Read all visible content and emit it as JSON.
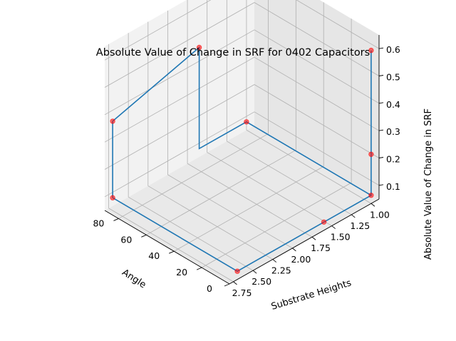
{
  "chart_data": {
    "type": "scatter",
    "title": "Absolute Value of Change in SRF for 0402 Capacitors",
    "xlabel": "Angle",
    "ylabel": "Substrate Heights",
    "zlabel": "Absolute Value of Change in SRF",
    "x_ticks": [
      "0",
      "20",
      "40",
      "60",
      "80"
    ],
    "y_ticks": [
      "1.00",
      "1.25",
      "1.50",
      "1.75",
      "2.00",
      "2.25",
      "2.50",
      "2.75"
    ],
    "z_ticks": [
      "0.1",
      "0.2",
      "0.3",
      "0.4",
      "0.5",
      "0.6"
    ],
    "colors": {
      "line": "#1f77b4",
      "points": "#ff0000",
      "pane": "#f2f2f2",
      "grid": "#b0b0b0"
    },
    "series": [
      {
        "kind": "line",
        "points": [
          {
            "angle": 0,
            "height": 1.0,
            "value": 0.08
          },
          {
            "angle": 0,
            "height": 1.6,
            "value": 0.08
          },
          {
            "angle": 0,
            "height": 2.7,
            "value": 0.08
          },
          {
            "angle": 90,
            "height": 2.7,
            "value": 0.08
          },
          {
            "angle": 90,
            "height": 2.7,
            "value": 0.36
          },
          {
            "angle": 90,
            "height": 1.6,
            "value": 0.45
          },
          {
            "angle": 90,
            "height": 1.6,
            "value": 0.08
          },
          {
            "angle": 90,
            "height": 1.0,
            "value": 0.08
          },
          {
            "angle": 0,
            "height": 1.0,
            "value": 0.08
          },
          {
            "angle": 0,
            "height": 1.0,
            "value": 0.23
          },
          {
            "angle": 0,
            "height": 1.0,
            "value": 0.61
          }
        ]
      },
      {
        "kind": "scatter",
        "points": [
          {
            "angle": 0,
            "height": 1.0,
            "value": 0.61
          },
          {
            "angle": 90,
            "height": 1.6,
            "value": 0.45
          },
          {
            "angle": 90,
            "height": 2.7,
            "value": 0.36
          },
          {
            "angle": 0,
            "height": 1.0,
            "value": 0.23
          },
          {
            "angle": 90,
            "height": 1.0,
            "value": 0.08
          },
          {
            "angle": 0,
            "height": 1.0,
            "value": 0.08
          },
          {
            "angle": 90,
            "height": 2.7,
            "value": 0.08
          },
          {
            "angle": 0,
            "height": 1.6,
            "value": 0.08
          },
          {
            "angle": 0,
            "height": 2.7,
            "value": 0.08
          }
        ]
      }
    ],
    "xlim": [
      0,
      90
    ],
    "ylim": [
      0.9,
      2.8
    ],
    "zlim": [
      0.05,
      0.65
    ],
    "grid": true
  }
}
